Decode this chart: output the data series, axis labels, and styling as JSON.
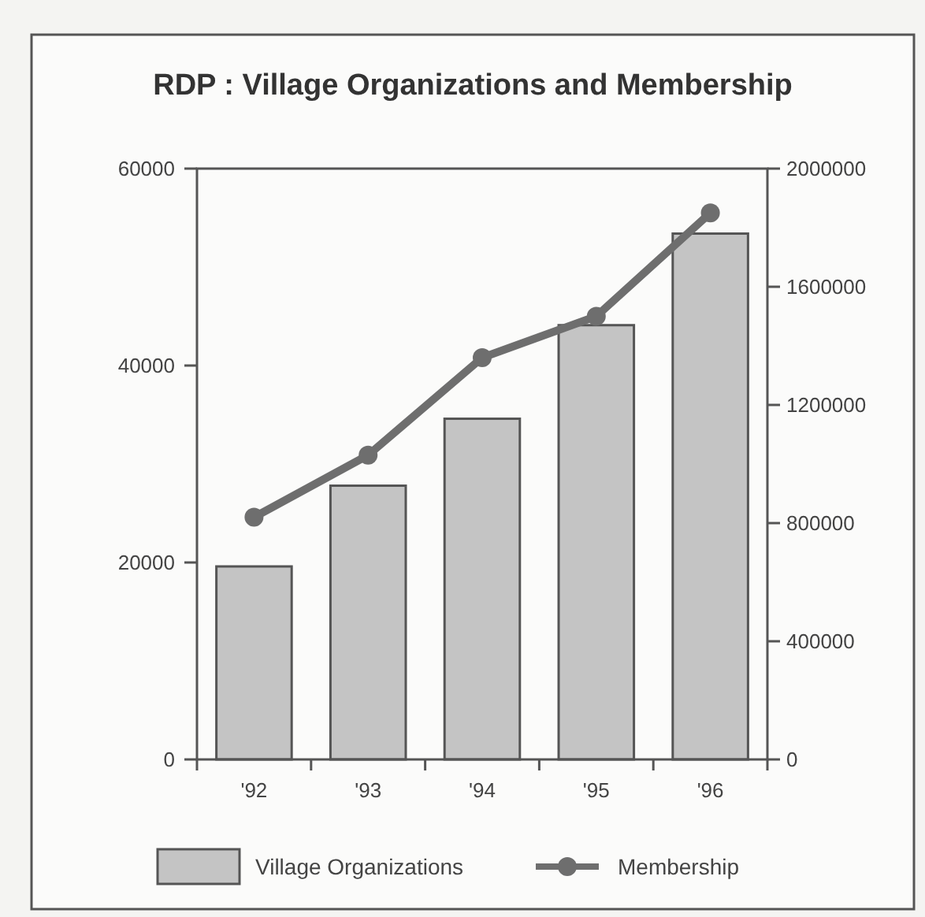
{
  "chart_data": {
    "type": "bar",
    "title": "RDP : Village Organizations and Membership",
    "categories": [
      "'92",
      "'93",
      "'94",
      "'95",
      "'96"
    ],
    "series": [
      {
        "name": "Village Organizations",
        "color": "#c4c4c4",
        "values": [
          19600,
          27800,
          34600,
          44100,
          53400
        ]
      },
      {
        "name": "Membership",
        "type": "line",
        "axis": "y2",
        "color": "#6e6e6e",
        "marker": "circle",
        "values": [
          820000,
          1030000,
          1360000,
          1500000,
          1850000
        ]
      }
    ],
    "ylim": [
      0,
      60000
    ],
    "yticks": [
      0,
      20000,
      40000,
      60000
    ],
    "y2lim": [
      0,
      2000000
    ],
    "y2ticks": [
      0,
      400000,
      800000,
      1200000,
      1600000,
      2000000
    ],
    "grid": false,
    "legend": "bottom"
  }
}
